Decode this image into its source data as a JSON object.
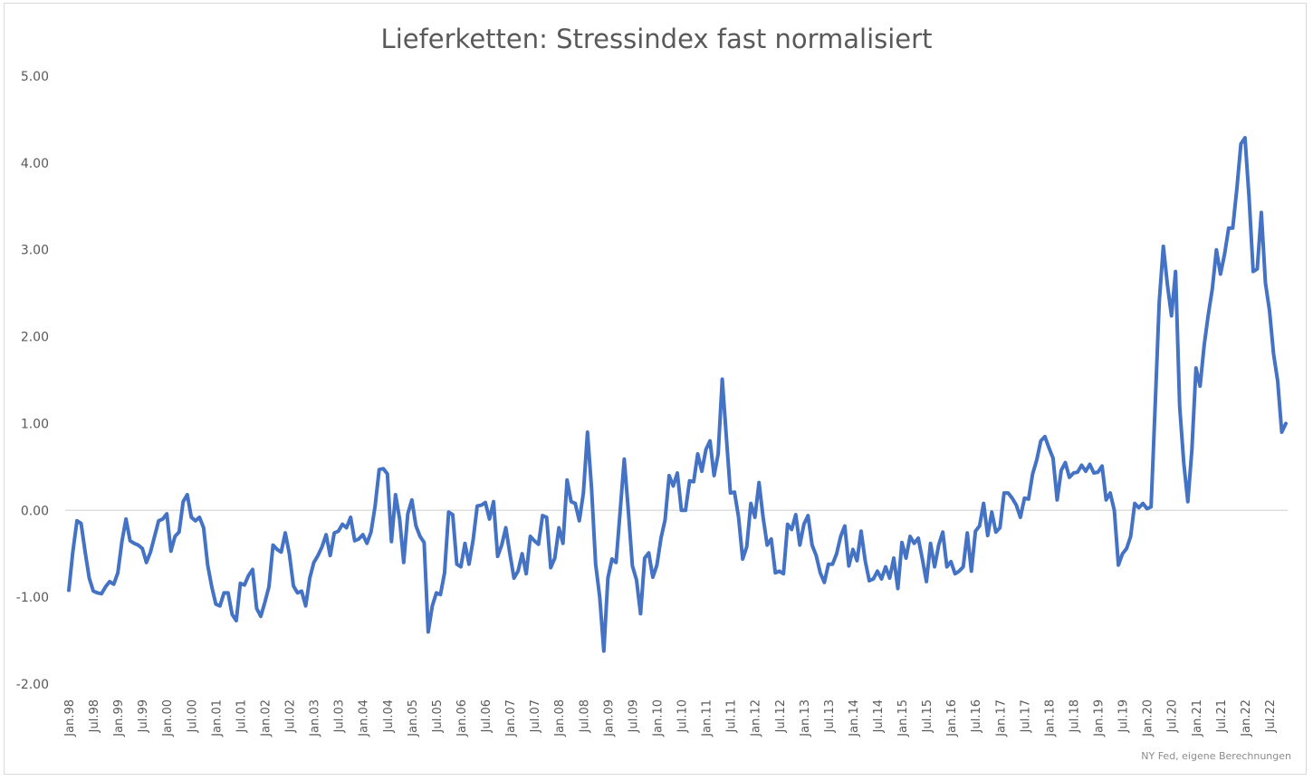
{
  "chart_data": {
    "type": "line",
    "title": "Lieferketten: Stressindex fast normalisiert",
    "source": "NY Fed, eigene Berechnungen",
    "ylim": [
      -2,
      5
    ],
    "yticks": [
      -2,
      -1,
      0,
      1,
      2,
      3,
      4,
      5
    ],
    "ytick_labels": [
      "-2.00",
      "-1.00",
      "0.00",
      "1.00",
      "2.00",
      "3.00",
      "4.00",
      "5.00"
    ],
    "xtick_labels": [
      "Jan.98",
      "Jul.98",
      "Jan.99",
      "Jul.99",
      "Jan.00",
      "Jul.00",
      "Jan.01",
      "Jul.01",
      "Jan.02",
      "Jul.02",
      "Jan.03",
      "Jul.03",
      "Jan.04",
      "Jul.04",
      "Jan.05",
      "Jul.05",
      "Jan.06",
      "Jul.06",
      "Jan.07",
      "Jul.07",
      "Jan.08",
      "Jul.08",
      "Jan.09",
      "Jul.09",
      "Jan.10",
      "Jul.10",
      "Jan.11",
      "Jul.11",
      "Jan.12",
      "Jul.12",
      "Jan.13",
      "Jul.13",
      "Jan.14",
      "Jul.14",
      "Jan.15",
      "Jul.15",
      "Jan.16",
      "Jul.16",
      "Jan.17",
      "Jul.17",
      "Jan.18",
      "Jul.18",
      "Jan.19",
      "Jul.19",
      "Jan.20",
      "Jul.20",
      "Jan.21",
      "Jul.21",
      "Jan.22",
      "Jul.22"
    ],
    "start": "Jan.98",
    "frequency": "monthly",
    "color": "#4472c4",
    "grid": false,
    "series": [
      {
        "values": [
          -0.92,
          -0.47,
          -0.12,
          -0.15,
          -0.48,
          -0.78,
          -0.93,
          -0.95,
          -0.96,
          -0.88,
          -0.82,
          -0.85,
          -0.72,
          -0.36,
          -0.1,
          -0.35,
          -0.38,
          -0.4,
          -0.44,
          -0.6,
          -0.48,
          -0.3,
          -0.12,
          -0.1,
          -0.04,
          -0.47,
          -0.3,
          -0.25,
          0.1,
          0.18,
          -0.08,
          -0.12,
          -0.08,
          -0.2,
          -0.63,
          -0.88,
          -1.08,
          -1.1,
          -0.95,
          -0.95,
          -1.2,
          -1.27,
          -0.84,
          -0.86,
          -0.75,
          -0.68,
          -1.13,
          -1.22,
          -1.06,
          -0.88,
          -0.4,
          -0.45,
          -0.48,
          -0.26,
          -0.5,
          -0.87,
          -0.95,
          -0.93,
          -1.1,
          -0.78,
          -0.6,
          -0.52,
          -0.42,
          -0.28,
          -0.52,
          -0.26,
          -0.24,
          -0.16,
          -0.2,
          -0.08,
          -0.35,
          -0.33,
          -0.28,
          -0.38,
          -0.25,
          0.05,
          0.47,
          0.48,
          0.42,
          -0.36,
          0.18,
          -0.1,
          -0.6,
          -0.04,
          0.12,
          -0.18,
          -0.3,
          -0.37,
          -1.4,
          -1.1,
          -0.95,
          -0.97,
          -0.72,
          -0.02,
          -0.05,
          -0.62,
          -0.65,
          -0.38,
          -0.62,
          -0.34,
          0.05,
          0.06,
          0.09,
          -0.1,
          0.1,
          -0.53,
          -0.4,
          -0.2,
          -0.5,
          -0.78,
          -0.7,
          -0.5,
          -0.73,
          -0.3,
          -0.35,
          -0.39,
          -0.06,
          -0.08,
          -0.66,
          -0.55,
          -0.2,
          -0.38,
          0.35,
          0.1,
          0.08,
          -0.12,
          0.2,
          0.9,
          0.25,
          -0.62,
          -1.0,
          -1.62,
          -0.78,
          -0.56,
          -0.6,
          -0.01,
          0.59,
          0.0,
          -0.64,
          -0.8,
          -1.19,
          -0.55,
          -0.49,
          -0.77,
          -0.63,
          -0.32,
          -0.11,
          0.4,
          0.28,
          0.43,
          0.0,
          0.0,
          0.34,
          0.33,
          0.65,
          0.45,
          0.7,
          0.8,
          0.4,
          0.65,
          1.51,
          0.85,
          0.2,
          0.21,
          -0.08,
          -0.56,
          -0.42,
          0.08,
          -0.08,
          0.32,
          -0.08,
          -0.4,
          -0.33,
          -0.72,
          -0.7,
          -0.73,
          -0.16,
          -0.22,
          -0.05,
          -0.4,
          -0.16,
          -0.06,
          -0.4,
          -0.52,
          -0.72,
          -0.83,
          -0.62,
          -0.62,
          -0.5,
          -0.3,
          -0.18,
          -0.64,
          -0.45,
          -0.58,
          -0.24,
          -0.58,
          -0.81,
          -0.79,
          -0.7,
          -0.79,
          -0.65,
          -0.78,
          -0.55,
          -0.9,
          -0.37,
          -0.55,
          -0.3,
          -0.38,
          -0.32,
          -0.56,
          -0.82,
          -0.38,
          -0.65,
          -0.4,
          -0.25,
          -0.65,
          -0.59,
          -0.73,
          -0.7,
          -0.65,
          -0.26,
          -0.7,
          -0.24,
          -0.18,
          0.08,
          -0.29,
          -0.02,
          -0.25,
          -0.2,
          0.2,
          0.2,
          0.14,
          0.06,
          -0.08,
          0.14,
          0.13,
          0.42,
          0.58,
          0.8,
          0.85,
          0.72,
          0.6,
          0.12,
          0.46,
          0.55,
          0.38,
          0.43,
          0.44,
          0.52,
          0.45,
          0.53,
          0.43,
          0.44,
          0.51,
          0.12,
          0.2,
          0.0,
          -0.63,
          -0.5,
          -0.44,
          -0.3,
          0.08,
          0.03,
          0.08,
          0.02,
          0.04,
          1.2,
          2.4,
          3.04,
          2.6,
          2.24,
          2.75,
          1.2,
          0.55,
          0.1,
          0.7,
          1.64,
          1.43,
          1.9,
          2.25,
          2.55,
          3.0,
          2.72,
          2.95,
          3.25,
          3.25,
          3.7,
          4.22,
          4.29,
          3.6,
          2.75,
          2.78,
          3.43,
          2.62,
          2.3,
          1.8,
          1.49,
          0.9,
          1.0
        ]
      }
    ]
  }
}
